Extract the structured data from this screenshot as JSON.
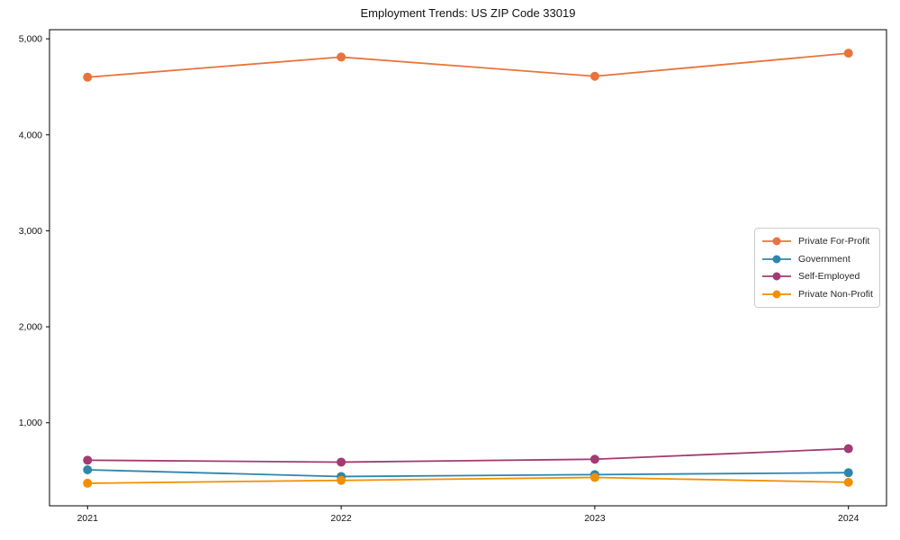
{
  "figure": {
    "background": "#ffffff",
    "axis_color": "#000000",
    "tick_label_color": "#111111",
    "legend_border_color": "#cccccc",
    "legend_text_color": "#262626"
  },
  "chart_data": {
    "type": "line",
    "title": "Employment Trends: US ZIP Code 33019",
    "xlabel": "",
    "ylabel": "",
    "x": [
      2021,
      2022,
      2023,
      2024
    ],
    "x_tick_labels": [
      "2021",
      "2022",
      "2023",
      "2024"
    ],
    "y_ticks": {
      "values": [
        1000,
        2000,
        3000,
        4000,
        5000
      ],
      "labels": [
        "1,000",
        "2,000",
        "3,000",
        "4,000",
        "5,000"
      ]
    },
    "ylim": [
      135,
      5095
    ],
    "x_margin_fraction": 0.05,
    "grid": false,
    "legend_position": "center-right",
    "marker": "circle",
    "series": [
      {
        "name": "Private For-Profit",
        "color": "#E8743B",
        "values": [
          4600,
          4810,
          4610,
          4850
        ]
      },
      {
        "name": "Government",
        "color": "#2E86AB",
        "values": [
          510,
          440,
          460,
          480
        ]
      },
      {
        "name": "Self-Employed",
        "color": "#A23B72",
        "values": [
          610,
          590,
          620,
          730
        ]
      },
      {
        "name": "Private Non-Profit",
        "color": "#F18F01",
        "values": [
          370,
          400,
          430,
          380
        ]
      }
    ]
  }
}
